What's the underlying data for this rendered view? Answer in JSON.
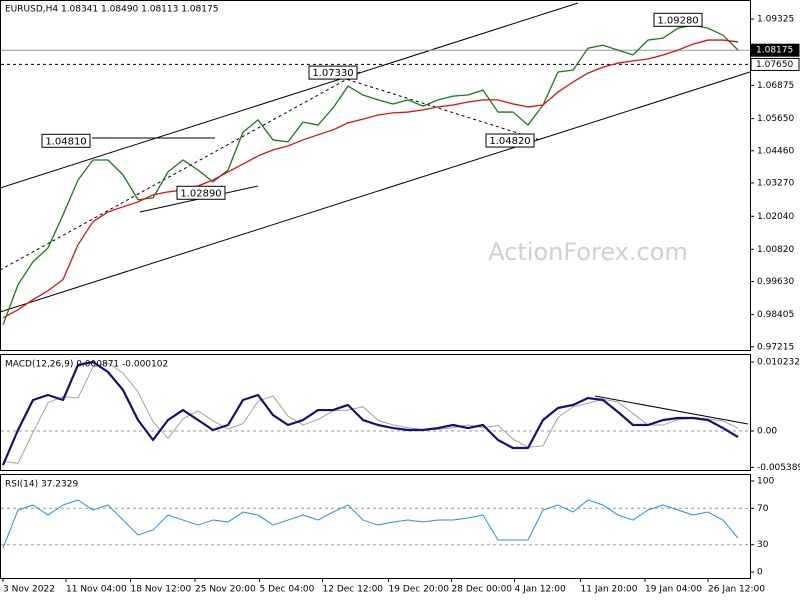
{
  "chart_data": [
    {
      "type": "line",
      "title": "EURUSD,H4  1.08341 1.08490 1.08113 1.08175",
      "watermark": "ActionForex.com",
      "ylim": [
        0.971,
        1.1003
      ],
      "yticks": [
        1.09325,
        1.06875,
        {
          "value": 1.0565,
          "label": "1.05650"
        },
        {
          "value": 1.0446,
          "label": "1.04460"
        },
        {
          "value": 1.0327,
          "label": "1.03270"
        },
        {
          "value": 1.0204,
          "label": "1.02040"
        },
        {
          "value": 1.0082,
          "label": "1.00820"
        },
        {
          "value": 0.9963,
          "label": "0.99630"
        },
        0.98405,
        0.97215
      ],
      "levels": [
        {
          "value": 1.08175,
          "label": "1.08175",
          "color": "#000000",
          "dash": false
        },
        {
          "value": 1.0765,
          "label": "1.07650",
          "color": "#ffffff",
          "dash": true
        }
      ],
      "annotations": [
        {
          "at": 2.6,
          "value": 1.0481,
          "label": "1.04810"
        },
        {
          "at": 11.6,
          "value": 1.0289,
          "label": "1.02890"
        },
        {
          "at": 20.4,
          "value": 1.0733,
          "label": "1.07330"
        },
        {
          "at": 32.2,
          "value": 1.0482,
          "label": "1.04820"
        },
        {
          "at": 43.4,
          "value": 1.0928,
          "label": "1.09280"
        }
      ],
      "series": [
        {
          "color": "#1a7a1a",
          "width": 1.3,
          "values": [
            0.9803,
            0.9951,
            1.0036,
            1.0087,
            1.0209,
            1.0338,
            1.0412,
            1.0412,
            1.0357,
            1.0265,
            1.0272,
            1.0368,
            1.0412,
            1.0375,
            1.0331,
            1.0375,
            1.0515,
            1.056,
            1.0486,
            1.0479,
            1.0552,
            1.0541,
            1.0604,
            1.0685,
            1.0652,
            1.0634,
            1.0619,
            1.0634,
            1.0611,
            1.0634,
            1.0648,
            1.0652,
            1.067,
            1.0589,
            1.0589,
            1.0541,
            1.0615,
            1.0737,
            1.0744,
            1.0825,
            1.0836,
            1.0818,
            1.08,
            1.0855,
            1.0862,
            1.0899,
            1.091,
            1.0899,
            1.0873,
            1.0818
          ]
        },
        {
          "color": "#e01010",
          "width": 1.3,
          "values": [
            0.9829,
            0.9859,
            0.9896,
            0.9929,
            0.997,
            1.0099,
            1.0184,
            1.022,
            1.0239,
            1.0257,
            1.0283,
            1.0294,
            1.0301,
            1.0316,
            1.0338,
            1.0368,
            1.0397,
            1.0427,
            1.0449,
            1.0464,
            1.0486,
            1.0505,
            1.0523,
            1.0549,
            1.0563,
            1.0578,
            1.0586,
            1.0589,
            1.0597,
            1.0608,
            1.0615,
            1.0626,
            1.0634,
            1.0634,
            1.0619,
            1.0608,
            1.0615,
            1.0663,
            1.07,
            1.0733,
            1.0755,
            1.077,
            1.0778,
            1.0785,
            1.08,
            1.0818,
            1.084,
            1.0855,
            1.0855,
            1.0848
          ]
        }
      ]
    },
    {
      "type": "line",
      "title": "MACD(12,26,9) 0.000871 -0.000102",
      "ylim": [
        -0.00578,
        0.01127
      ],
      "yticks": [
        0.010232,
        {
          "value": 0,
          "label": "0.00"
        },
        -0.005389
      ],
      "levels": [
        0
      ],
      "series": [
        {
          "color": "#a0a0a0",
          "width": 1,
          "values": [
            -0.0045,
            -0.0048,
            -0.0002,
            0.0042,
            0.0051,
            0.0049,
            0.0095,
            0.0101,
            0.0086,
            0.0058,
            0.0014,
            -0.0011,
            0.0018,
            0.003,
            0.0015,
            0.0003,
            0.0011,
            0.0044,
            0.0052,
            0.0022,
            0.0009,
            0.0017,
            0.003,
            0.0031,
            0.0036,
            0.0016,
            0.0009,
            0.0005,
            0.0002,
            0.0002,
            0.0005,
            0.0009,
            0.0005,
            0.0008,
            -0.0012,
            -0.0024,
            -0.0022,
            0.002,
            0.0036,
            0.0041,
            0.0047,
            0.0043,
            0.0026,
            0.0009,
            0.0009,
            0.0017,
            0.0019,
            0.0018,
            0.0015,
            0.0004
          ]
        },
        {
          "color": "#10107a",
          "width": 2.2,
          "values": [
            -0.00504,
            0.00015,
            0.0046,
            0.00534,
            0.0046,
            0.00979,
            0.01023,
            0.00875,
            0.00608,
            0.00163,
            -0.00133,
            0.00163,
            0.00311,
            0.00163,
            0.00015,
            0.00089,
            0.0046,
            0.00534,
            0.00237,
            0.00089,
            0.00163,
            0.00311,
            0.00311,
            0.00386,
            0.00163,
            0.00089,
            0.00044,
            0.00015,
            0.00015,
            0.00044,
            0.00089,
            0.00044,
            0.00089,
            -0.00133,
            -0.00252,
            -0.00252,
            0.00163,
            0.00341,
            0.00386,
            0.00489,
            0.0046,
            0.00282,
            0.00089,
            0.00089,
            0.00163,
            0.00193,
            0.00193,
            0.00163,
            0.00044,
            -0.00089
          ]
        }
      ]
    },
    {
      "type": "line",
      "title": "RSI(14) 37.2329",
      "ylim": [
        -6.6,
        106.6
      ],
      "yticks": [
        100,
        70,
        30,
        0
      ],
      "levels": [
        70,
        30
      ],
      "xticks": [
        {
          "value": 0,
          "label": "3 Nov 2022"
        },
        {
          "value": 4.2,
          "label": "11 Nov 04:00"
        },
        {
          "value": 8.5,
          "label": "18 Nov 12:00"
        },
        {
          "value": 12.8,
          "label": "25 Nov 20:00"
        },
        {
          "value": 17.1,
          "label": "5 Dec 04:00"
        },
        {
          "value": 21.3,
          "label": "12 Dec 12:00"
        },
        {
          "value": 25.7,
          "label": "19 Dec 20:00"
        },
        {
          "value": 29.9,
          "label": "28 Dec 00:00"
        },
        {
          "value": 34.1,
          "label": "4 Jan 12:00"
        },
        {
          "value": 38.5,
          "label": "11 Jan 20:00"
        },
        {
          "value": 42.8,
          "label": "19 Jan 04:00"
        },
        {
          "value": 47,
          "label": "26 Jan 12:00"
        }
      ],
      "series": [
        {
          "color": "#1e90ff",
          "width": 1,
          "values": [
            26.4,
            68.1,
            73.6,
            62.6,
            73.6,
            79.1,
            68.1,
            73.6,
            57.1,
            40.7,
            46.2,
            62.6,
            57.1,
            51.6,
            57.1,
            54.9,
            65.9,
            62.6,
            51.6,
            57.1,
            62.6,
            57.1,
            65.9,
            73.6,
            57.1,
            51.6,
            54.9,
            57.1,
            54.9,
            57.1,
            57.1,
            59.3,
            62.6,
            35.2,
            35.2,
            35.2,
            68.1,
            73.6,
            65.9,
            79.1,
            73.6,
            62.6,
            57.1,
            68.1,
            73.6,
            68.1,
            62.6,
            65.9,
            57.1,
            37.2
          ]
        }
      ]
    }
  ]
}
